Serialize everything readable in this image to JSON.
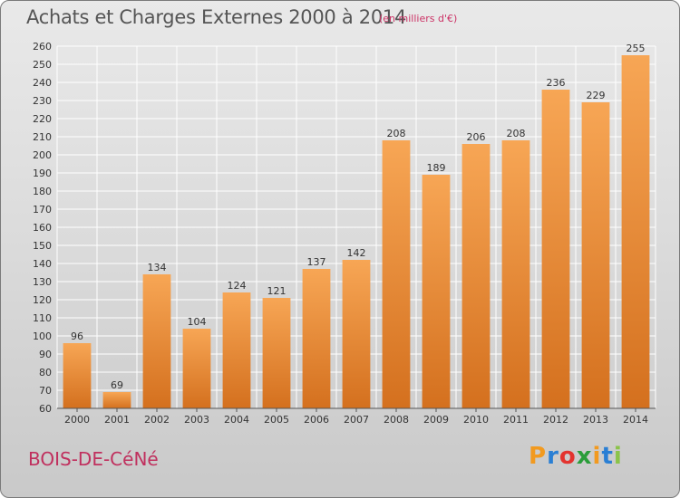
{
  "title": "Achats et Charges Externes 2000 à 2014",
  "subtitle": "(en milliers d'€)",
  "place": "BOIS-DE-CéNé",
  "logo": {
    "letters": [
      "P",
      "r",
      "o",
      "x",
      "i",
      "t",
      "i"
    ],
    "colors": [
      "#f29a1f",
      "#2a7fd4",
      "#e3342f",
      "#2a9d3a",
      "#f29a1f",
      "#2a7fd4",
      "#8bc34a"
    ]
  },
  "colors": {
    "bar_light": "#f7a655",
    "bar_dark": "#d4701e",
    "grid": "#ffffff"
  },
  "chart_data": {
    "type": "bar",
    "title": "Achats et Charges Externes 2000 à 2014",
    "subtitle": "(en milliers d'€)",
    "xlabel": "",
    "ylabel": "",
    "ylim": [
      60,
      260
    ],
    "yticks": [
      60,
      70,
      80,
      90,
      100,
      110,
      120,
      130,
      140,
      150,
      160,
      170,
      180,
      190,
      200,
      210,
      220,
      230,
      240,
      250,
      260
    ],
    "grid": true,
    "categories": [
      "2000",
      "2001",
      "2002",
      "2003",
      "2004",
      "2005",
      "2006",
      "2007",
      "2008",
      "2009",
      "2010",
      "2011",
      "2012",
      "2013",
      "2014"
    ],
    "values": [
      96,
      69,
      134,
      104,
      124,
      121,
      137,
      142,
      208,
      189,
      206,
      208,
      236,
      229,
      255
    ],
    "value_labels": [
      "96",
      "69",
      "134",
      "104",
      "124",
      "121",
      "137",
      "142",
      "208",
      "189",
      "206",
      "208",
      "236",
      "229",
      "255"
    ]
  }
}
